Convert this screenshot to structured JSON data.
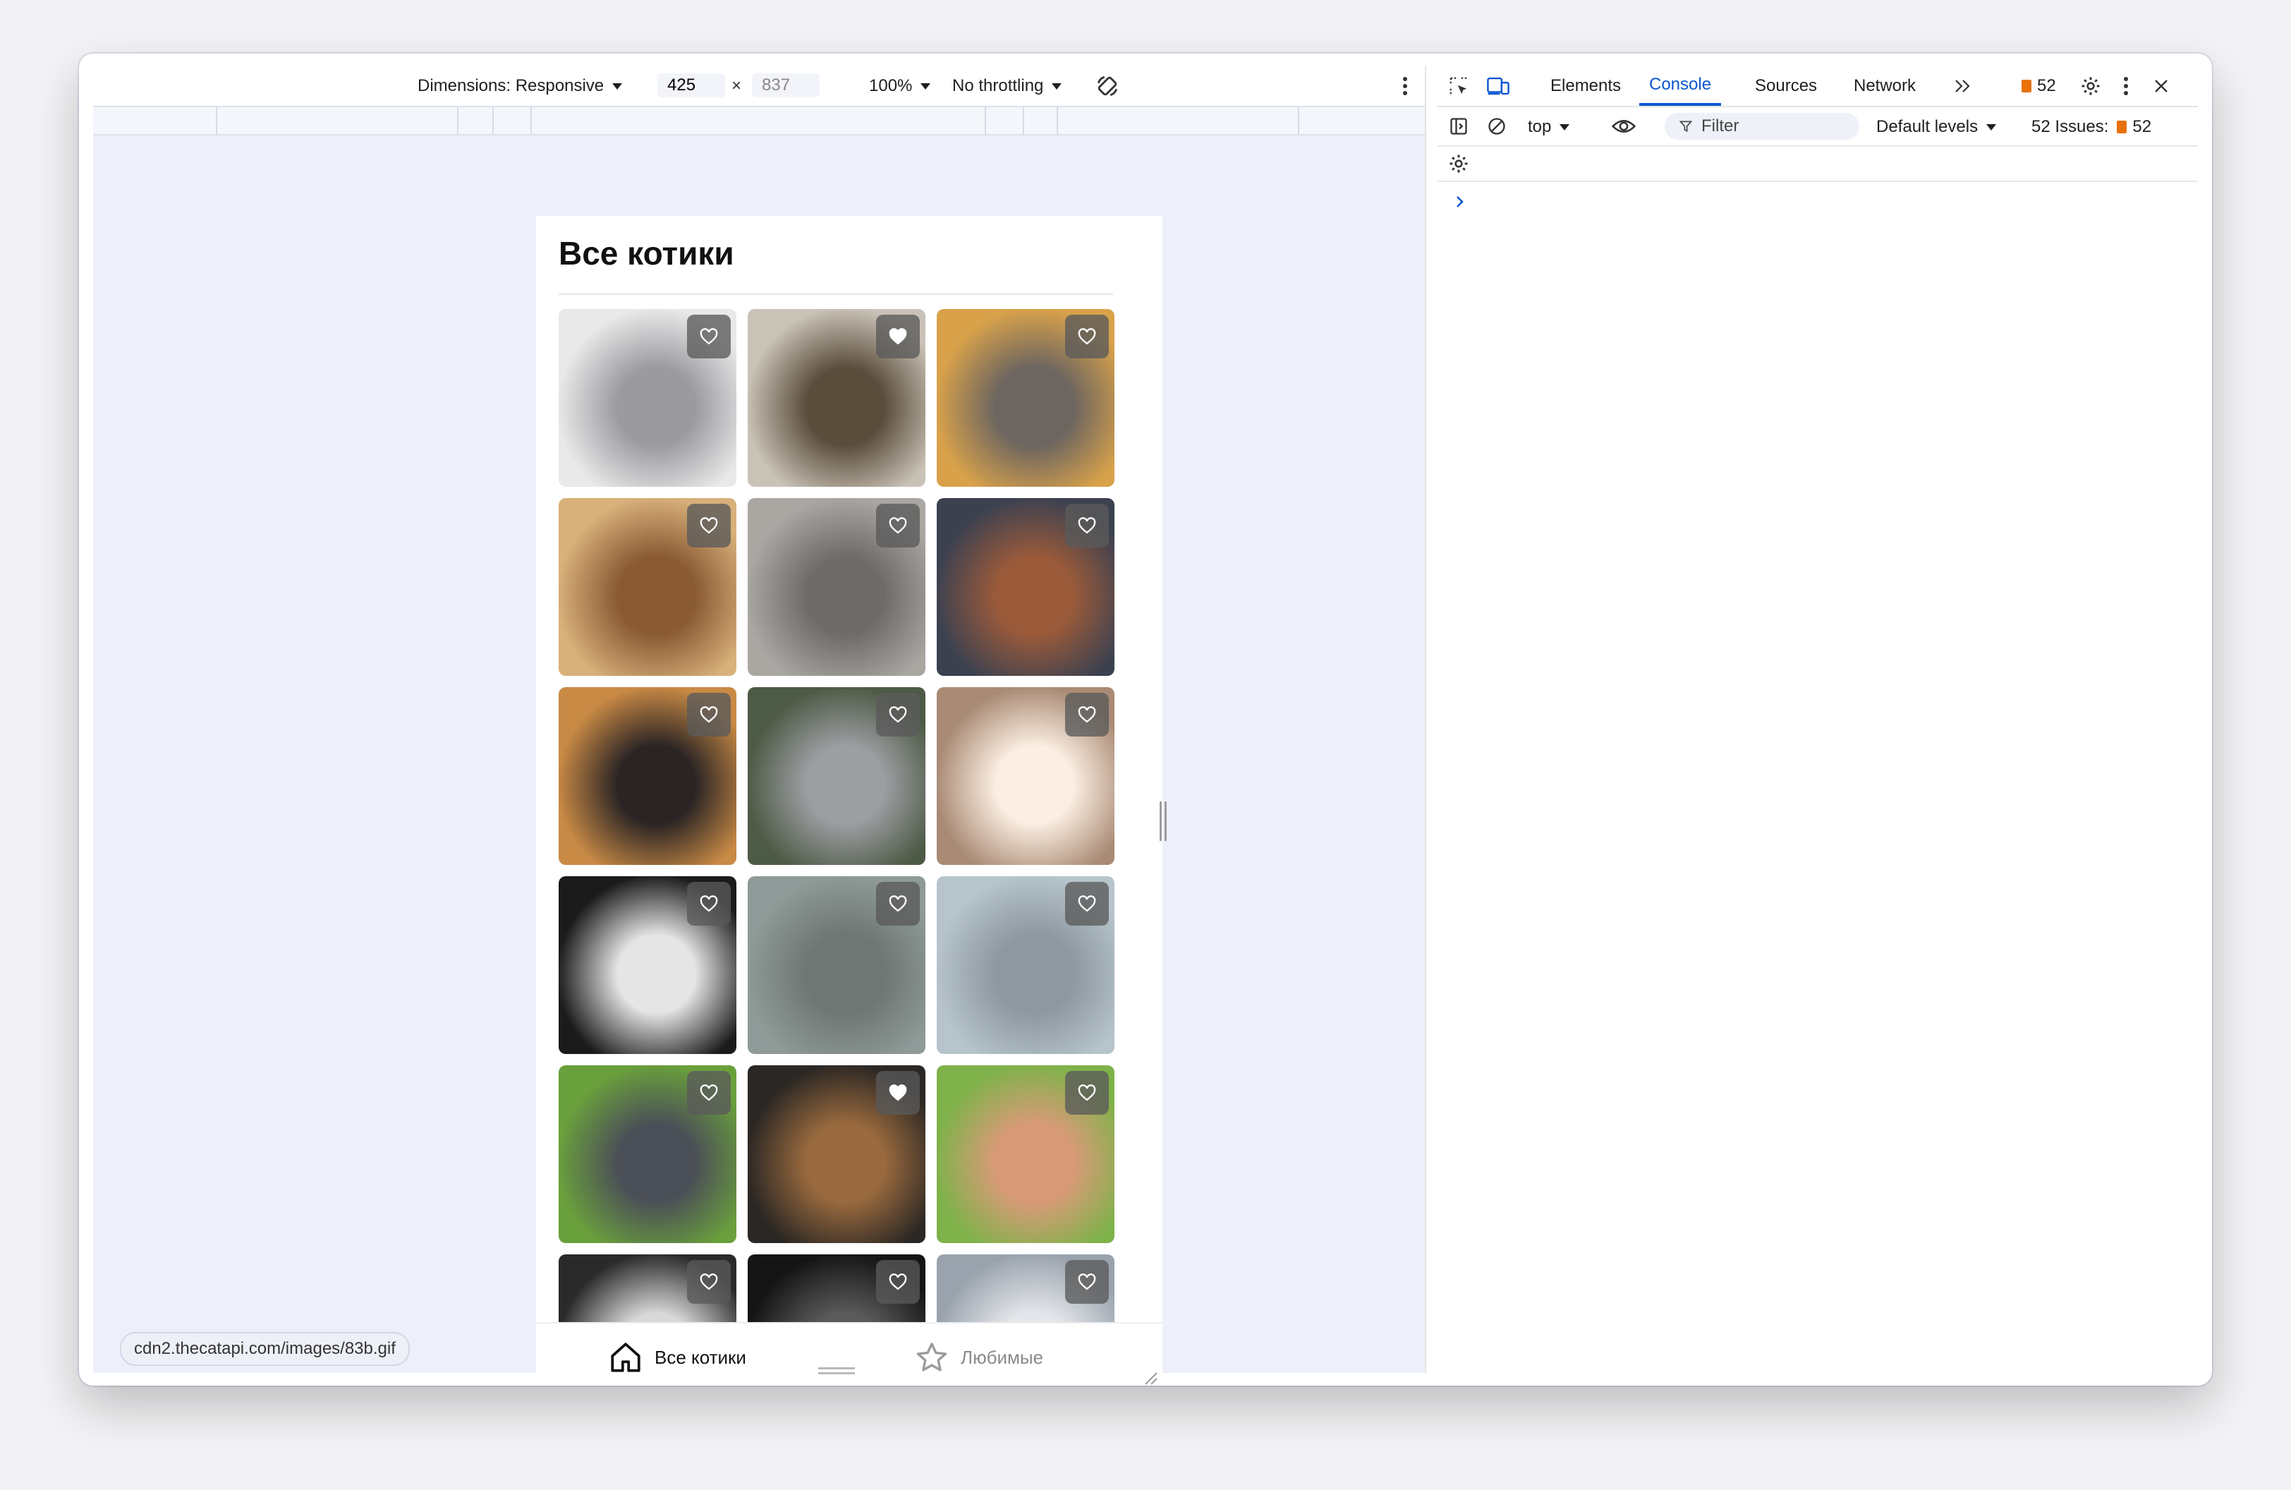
{
  "device_toolbar": {
    "dimensions_label": "Dimensions: Responsive",
    "width": "425",
    "times": "×",
    "height": "837",
    "zoom": "100%",
    "throttling": "No throttling"
  },
  "page": {
    "title": "Все котики",
    "nav": {
      "home_label": "Все котики",
      "favorites_label": "Любимые"
    },
    "tiles": [
      {
        "favorited": false,
        "colors": [
          "#e9e9ea",
          "#9b9a9e"
        ]
      },
      {
        "favorited": true,
        "colors": [
          "#c9c2b6",
          "#5b4d3c"
        ]
      },
      {
        "favorited": false,
        "colors": [
          "#d9a24a",
          "#6c6560"
        ]
      },
      {
        "favorited": false,
        "colors": [
          "#d8b07a",
          "#8a5a34"
        ]
      },
      {
        "favorited": false,
        "colors": [
          "#aaa7a3",
          "#6e6b68"
        ]
      },
      {
        "favorited": false,
        "colors": [
          "#3c4150",
          "#9a5a3a"
        ]
      },
      {
        "favorited": false,
        "colors": [
          "#c98a45",
          "#2a2424"
        ]
      },
      {
        "favorited": false,
        "colors": [
          "#4d5a45",
          "#9c9ea2"
        ]
      },
      {
        "favorited": false,
        "colors": [
          "#a98a74",
          "#fbeee2"
        ]
      },
      {
        "favorited": false,
        "colors": [
          "#1b1b1b",
          "#e5e5e5"
        ]
      },
      {
        "favorited": false,
        "colors": [
          "#8e9b98",
          "#6f7674"
        ]
      },
      {
        "favorited": false,
        "colors": [
          "#b7c4cb",
          "#8d98a0"
        ]
      },
      {
        "favorited": false,
        "colors": [
          "#6aa03c",
          "#4b4f57"
        ]
      },
      {
        "favorited": true,
        "colors": [
          "#2b2724",
          "#9a6a3e"
        ]
      },
      {
        "favorited": false,
        "colors": [
          "#7fb24a",
          "#d99a78"
        ]
      },
      {
        "favorited": false,
        "colors": [
          "#2a2a2a",
          "#d8d8d8"
        ]
      },
      {
        "favorited": false,
        "colors": [
          "#151515",
          "#5a5a5a"
        ]
      },
      {
        "favorited": false,
        "colors": [
          "#9aa3ad",
          "#e3e6ea"
        ]
      }
    ]
  },
  "status_url": "cdn2.thecatapi.com/images/83b.gif",
  "devtools": {
    "tabs": [
      "Elements",
      "Console",
      "Sources",
      "Network"
    ],
    "active_tab": "Console",
    "issues_count": "52",
    "context": "top",
    "filter_placeholder": "Filter",
    "levels": "Default levels",
    "issues_label": "52 Issues:",
    "issues_badge": "52"
  }
}
